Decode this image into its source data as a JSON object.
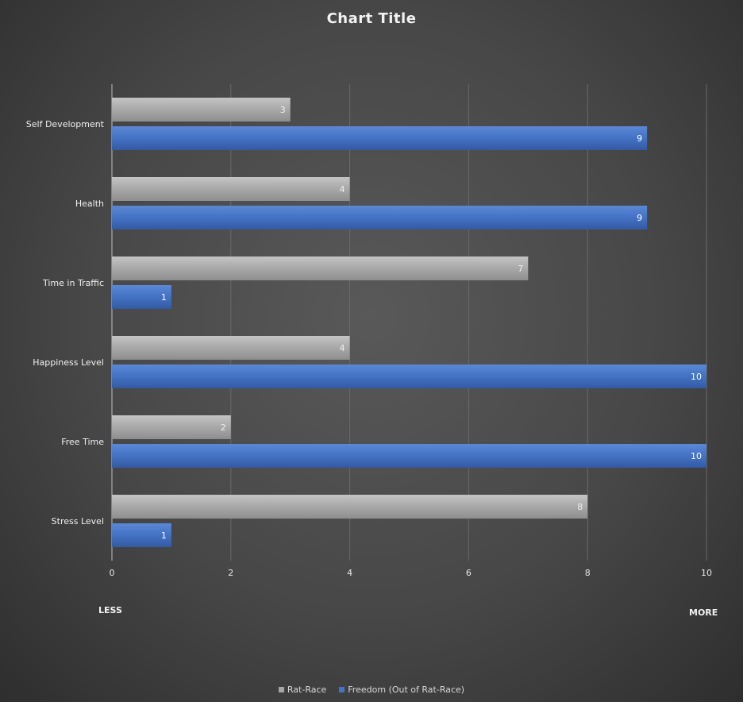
{
  "chart_data": {
    "type": "bar",
    "orientation": "horizontal",
    "title": "Chart Title",
    "categories": [
      "Self Development",
      "Health",
      "Time in Traffic",
      "Happiness Level",
      "Free Time",
      "Stress Level"
    ],
    "series": [
      {
        "name": "Rat-Race",
        "color": "#a6a6a6",
        "values": [
          3,
          4,
          7,
          4,
          2,
          8
        ]
      },
      {
        "name": "Freedom (Out of Rat-Race)",
        "color": "#4472c4",
        "values": [
          9,
          9,
          1,
          10,
          10,
          1
        ]
      }
    ],
    "xlim": [
      0,
      10
    ],
    "xticks": [
      0,
      2,
      4,
      6,
      8,
      10
    ],
    "x_low_label": "LESS",
    "x_high_label": "MORE",
    "grid": true,
    "legend": "bottom"
  }
}
